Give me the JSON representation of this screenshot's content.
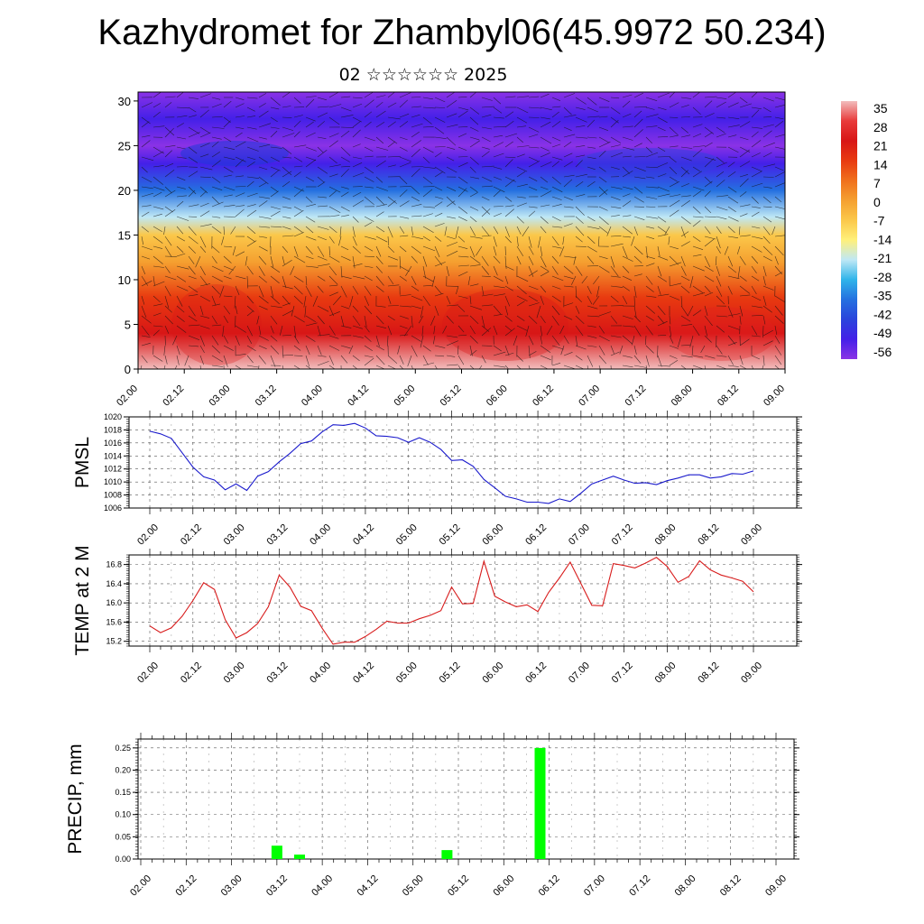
{
  "header": {
    "title": "Kazhydromet for Zhambyl06(45.9972 50.234)",
    "subtitle": "02 ☆☆☆☆☆☆ 2025"
  },
  "time_ticks": [
    "02.00",
    "02.12",
    "03.00",
    "03.12",
    "04.00",
    "04.12",
    "05.00",
    "05.12",
    "06.00",
    "06.12",
    "07.00",
    "07.12",
    "08.00",
    "08.12",
    "09.00"
  ],
  "chart_data": [
    {
      "type": "heatmap",
      "description_label": "",
      "y_ticks": [
        0,
        5,
        10,
        15,
        20,
        25,
        30
      ],
      "ylim": [
        0,
        31
      ],
      "colorbar": {
        "labels": [
          "35",
          "28",
          "21",
          "14",
          "7",
          "0",
          "-7",
          "-14",
          "-21",
          "-28",
          "-35",
          "-42",
          "-49",
          "-56"
        ],
        "colors": [
          "#f2bdbd",
          "#e83a3a",
          "#d81616",
          "#e83a10",
          "#f0701c",
          "#f5a030",
          "#fbc84a",
          "#fff07a",
          "#bfe8f5",
          "#2fb4ea",
          "#2470e0",
          "#2a44dc",
          "#4420e8",
          "#8a32e6"
        ]
      },
      "vertical_profile": [
        {
          "level": 0,
          "value": 33
        },
        {
          "level": 4,
          "value": 24
        },
        {
          "level": 8,
          "value": 14
        },
        {
          "level": 12,
          "value": 2
        },
        {
          "level": 15,
          "value": -10
        },
        {
          "level": 17,
          "value": -22
        },
        {
          "level": 20,
          "value": -34
        },
        {
          "level": 23,
          "value": -50
        },
        {
          "level": 25,
          "value": -56
        },
        {
          "level": 28,
          "value": -52
        },
        {
          "level": 31,
          "value": -62
        }
      ]
    },
    {
      "type": "line",
      "ylabel": "PMSL",
      "ylim": [
        1006,
        1020
      ],
      "y_ticks": [
        1006,
        1008,
        1010,
        1012,
        1014,
        1016,
        1018,
        1020
      ],
      "color": "#1a1acc",
      "values": [
        1017.8,
        1017.4,
        1016.7,
        1014.5,
        1012.3,
        1010.8,
        1010.3,
        1008.8,
        1009.7,
        1008.7,
        1010.9,
        1011.6,
        1013.1,
        1014.4,
        1015.9,
        1016.3,
        1017.7,
        1018.8,
        1018.7,
        1019.0,
        1018.3,
        1017.1,
        1017.0,
        1016.8,
        1016.1,
        1016.8,
        1016.1,
        1015.0,
        1013.3,
        1013.4,
        1012.4,
        1010.4,
        1009.1,
        1007.8,
        1007.4,
        1006.9,
        1006.9,
        1006.7,
        1007.4,
        1007.0,
        1008.3,
        1009.7,
        1010.3,
        1010.9,
        1010.3,
        1009.8,
        1009.9,
        1009.6,
        1010.2,
        1010.6,
        1011.1,
        1011.1,
        1010.6,
        1010.8,
        1011.3,
        1011.2,
        1011.7
      ]
    },
    {
      "type": "line",
      "ylabel": "TEMP at 2 M",
      "ylim": [
        15.1,
        17.0
      ],
      "y_ticks": [
        15.2,
        15.6,
        16.0,
        16.4,
        16.8
      ],
      "color": "#d81c1c",
      "values": [
        15.52,
        15.38,
        15.48,
        15.72,
        16.05,
        16.42,
        16.28,
        15.65,
        15.27,
        15.38,
        15.57,
        15.92,
        16.58,
        16.33,
        15.93,
        15.84,
        15.47,
        15.14,
        15.18,
        15.18,
        15.3,
        15.45,
        15.62,
        15.58,
        15.58,
        15.67,
        15.74,
        15.84,
        16.33,
        15.98,
        15.99,
        16.87,
        16.14,
        16.02,
        15.92,
        15.96,
        15.82,
        16.22,
        16.52,
        16.85,
        16.4,
        15.95,
        15.94,
        16.82,
        16.78,
        16.73,
        16.83,
        16.95,
        16.76,
        16.43,
        16.55,
        16.88,
        16.69,
        16.58,
        16.52,
        16.45,
        16.23
      ]
    },
    {
      "type": "bar",
      "ylabel": "PRECIP, mm",
      "ylim": [
        0,
        0.27
      ],
      "y_ticks": [
        "0.00",
        "0.05",
        "0.10",
        "0.15",
        "0.20",
        "0.25"
      ],
      "color": "#00ff00",
      "bars": [
        {
          "t": 1.5,
          "value": 0.03
        },
        {
          "t": 1.75,
          "value": 0.01
        },
        {
          "t": 3.375,
          "value": 0.02
        },
        {
          "t": 4.4,
          "value": 0.25
        }
      ]
    }
  ]
}
